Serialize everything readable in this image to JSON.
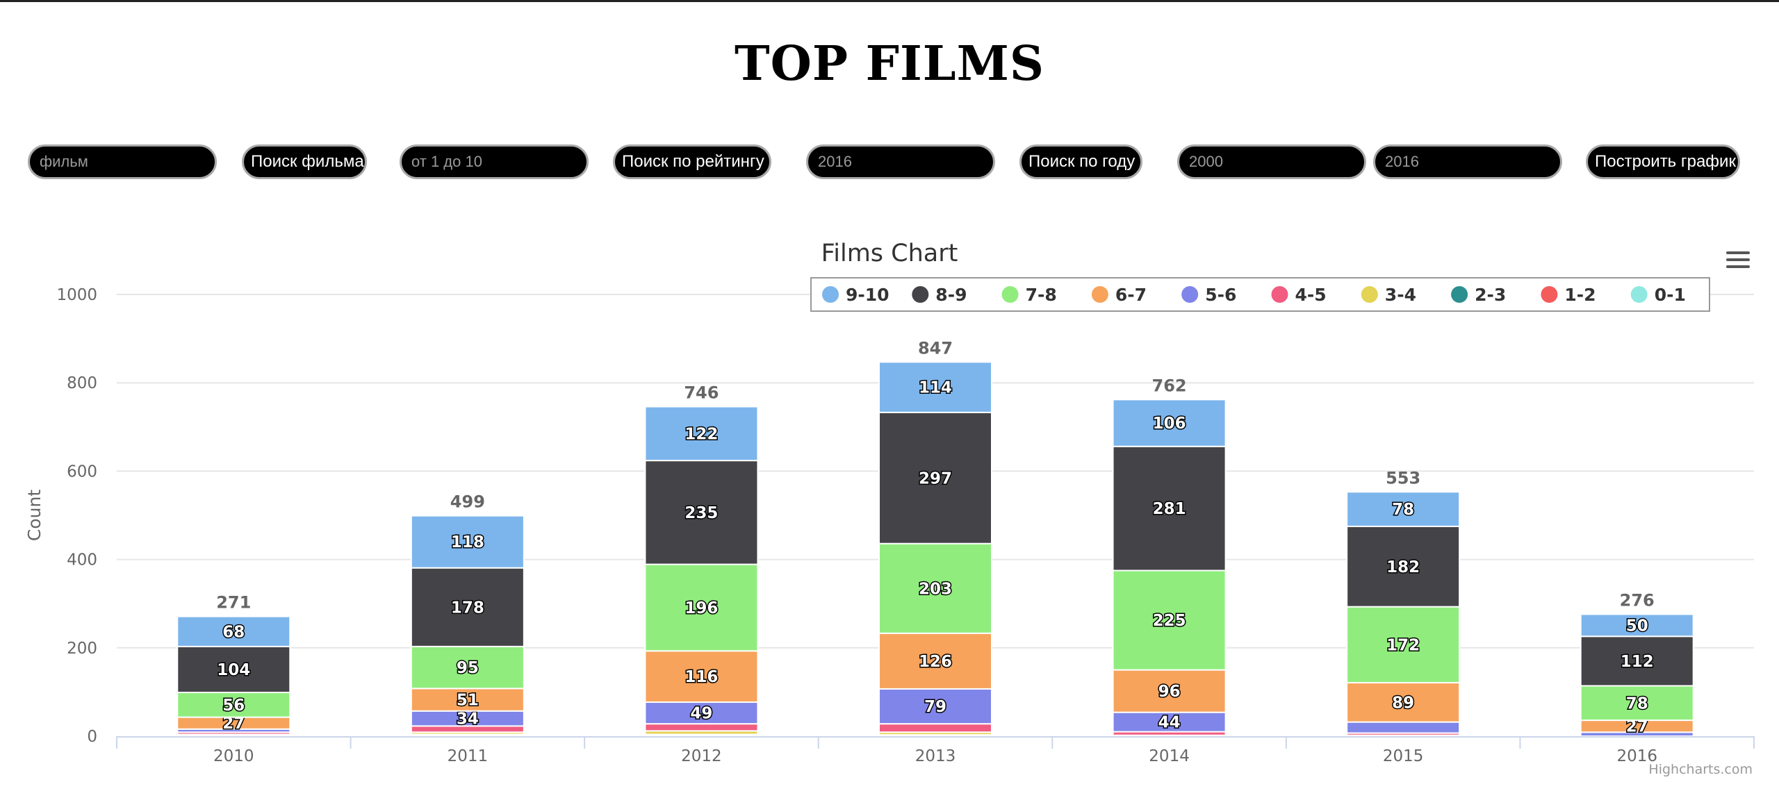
{
  "page": {
    "title": "TOP FILMS"
  },
  "controls": {
    "film_search": {
      "placeholder": "фильм",
      "button": "Поиск фильма"
    },
    "rating_search": {
      "placeholder": "от 1 до 10",
      "button": "Поиск по рейтингу"
    },
    "year_search": {
      "placeholder": "2016",
      "button": "Поиск по году"
    },
    "chart_build": {
      "from_placeholder": "2000",
      "to_placeholder": "2016",
      "button": "Построить график"
    }
  },
  "chart_data": {
    "type": "bar",
    "stacked": true,
    "title": "Films Chart",
    "xlabel": "",
    "ylabel": "Count",
    "ylim": [
      0,
      1000
    ],
    "yticks": [
      0,
      200,
      400,
      600,
      800,
      1000
    ],
    "grid": true,
    "legend_position": "top-right",
    "categories": [
      "2010",
      "2011",
      "2012",
      "2013",
      "2014",
      "2015",
      "2016"
    ],
    "totals": [
      271,
      499,
      746,
      847,
      762,
      553,
      276
    ],
    "series": [
      {
        "name": "9-10",
        "color": "#7cb5ec",
        "values": [
          68,
          118,
          122,
          114,
          106,
          78,
          50
        ]
      },
      {
        "name": "8-9",
        "color": "#434348",
        "values": [
          104,
          178,
          235,
          297,
          281,
          182,
          112
        ]
      },
      {
        "name": "7-8",
        "color": "#90ed7d",
        "values": [
          56,
          95,
          196,
          203,
          225,
          172,
          78
        ]
      },
      {
        "name": "6-7",
        "color": "#f7a35c",
        "values": [
          27,
          51,
          116,
          126,
          96,
          89,
          27
        ]
      },
      {
        "name": "5-6",
        "color": "#8085e9",
        "values": [
          7,
          34,
          49,
          79,
          44,
          25,
          9
        ]
      },
      {
        "name": "4-5",
        "color": "#f15c80",
        "values": [
          5,
          14,
          16,
          19,
          8,
          5,
          0
        ]
      },
      {
        "name": "3-4",
        "color": "#e4d354",
        "values": [
          3,
          5,
          8,
          6,
          1,
          1,
          0
        ]
      },
      {
        "name": "2-3",
        "color": "#2b908f",
        "values": [
          1,
          1,
          2,
          1,
          1,
          1,
          0
        ]
      },
      {
        "name": "1-2",
        "color": "#f45b5b",
        "values": [
          0,
          2,
          1,
          1,
          0,
          0,
          0
        ]
      },
      {
        "name": "0-1",
        "color": "#91e8e1",
        "values": [
          0,
          1,
          1,
          1,
          0,
          0,
          0
        ]
      }
    ],
    "credits": "Highcharts.com"
  }
}
